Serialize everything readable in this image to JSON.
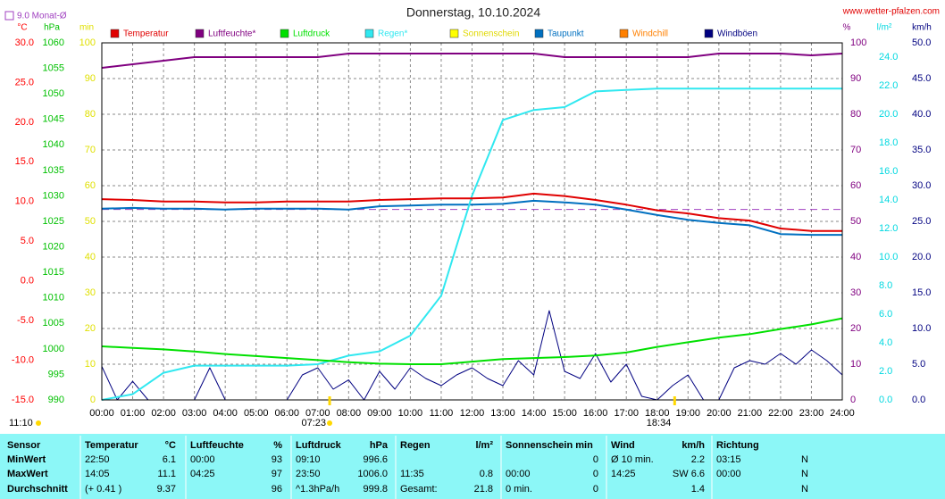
{
  "title": "Donnerstag, 10.10.2024",
  "site": "www.wetter-pfalzen.com",
  "monthly_avg": {
    "label": "9.0 Monat-Ø",
    "value": 9.0,
    "color": "#a040c0"
  },
  "sun": {
    "now": "11:10",
    "sunrise": "07:23",
    "sunset": "18:34"
  },
  "chart_data": {
    "type": "line",
    "x": [
      0,
      1,
      2,
      3,
      4,
      5,
      6,
      7,
      8,
      9,
      10,
      11,
      12,
      13,
      14,
      15,
      16,
      17,
      18,
      19,
      20,
      21,
      22,
      23,
      24
    ],
    "xlim": [
      0,
      24
    ],
    "xticks": [
      {
        "value": 0,
        "label": "00:00"
      },
      {
        "value": 1,
        "label": "01:00"
      },
      {
        "value": 2,
        "label": "02:00"
      },
      {
        "value": 3,
        "label": "03:00"
      },
      {
        "value": 4,
        "label": "04:00"
      },
      {
        "value": 5,
        "label": "05:00"
      },
      {
        "value": 6,
        "label": "06:00"
      },
      {
        "value": 7,
        "label": "07:00"
      },
      {
        "value": 8,
        "label": "08:00"
      },
      {
        "value": 9,
        "label": "09:00"
      },
      {
        "value": 10,
        "label": "10:00"
      },
      {
        "value": 11,
        "label": "11:00"
      },
      {
        "value": 12,
        "label": "12:00"
      },
      {
        "value": 13,
        "label": "13:00"
      },
      {
        "value": 14,
        "label": "14:00"
      },
      {
        "value": 15,
        "label": "15:00"
      },
      {
        "value": 16,
        "label": "16:00"
      },
      {
        "value": 17,
        "label": "17:00"
      },
      {
        "value": 18,
        "label": "18:00"
      },
      {
        "value": 19,
        "label": "19:00"
      },
      {
        "value": 20,
        "label": "20:00"
      },
      {
        "value": 21,
        "label": "21:00"
      },
      {
        "value": 22,
        "label": "22:00"
      },
      {
        "value": 23,
        "label": "23:00"
      },
      {
        "value": 24,
        "label": "24:00"
      }
    ],
    "grid": true,
    "axes": [
      {
        "unit": "°C",
        "color": "#ff0000",
        "lim": [
          -15,
          30
        ],
        "ticks": [
          {
            "value": 30,
            "label": "30.0"
          },
          {
            "value": 25,
            "label": "25.0"
          },
          {
            "value": 20,
            "label": "20.0"
          },
          {
            "value": 15,
            "label": "15.0"
          },
          {
            "value": 10,
            "label": "10.0"
          },
          {
            "value": 5,
            "label": "5.0"
          },
          {
            "value": 0,
            "label": "0.0"
          },
          {
            "value": -5,
            "label": "-5.0"
          },
          {
            "value": -10,
            "label": "-10.0"
          },
          {
            "value": -15,
            "label": "-15.0"
          }
        ]
      },
      {
        "unit": "hPa",
        "color": "#00c000",
        "lim": [
          990,
          1060
        ],
        "ticks": [
          1060,
          1055,
          1050,
          1045,
          1040,
          1035,
          1030,
          1025,
          1020,
          1015,
          1010,
          1005,
          1000,
          995,
          990
        ]
      },
      {
        "unit": "min",
        "color": "#e0e000",
        "lim": [
          0,
          100
        ],
        "ticks": [
          100,
          90,
          80,
          70,
          60,
          50,
          40,
          30,
          20,
          10,
          0
        ]
      },
      {
        "unit": "%",
        "color": "#800080",
        "lim": [
          0,
          100
        ],
        "ticks": [
          100,
          90,
          80,
          70,
          60,
          50,
          40,
          30,
          20,
          10,
          0
        ]
      },
      {
        "unit": "l/m²",
        "color": "#00d8e0",
        "lim": [
          0,
          25
        ],
        "ticks": [
          {
            "value": 24,
            "label": "24.0"
          },
          {
            "value": 22,
            "label": "22.0"
          },
          {
            "value": 20,
            "label": "20.0"
          },
          {
            "value": 18,
            "label": "18.0"
          },
          {
            "value": 16,
            "label": "16.0"
          },
          {
            "value": 14,
            "label": "14.0"
          },
          {
            "value": 12,
            "label": "12.0"
          },
          {
            "value": 10,
            "label": "10.0"
          },
          {
            "value": 8,
            "label": "8.0"
          },
          {
            "value": 6,
            "label": "6.0"
          },
          {
            "value": 4,
            "label": "4.0"
          },
          {
            "value": 2,
            "label": "2.0"
          },
          {
            "value": 0,
            "label": "0.0"
          }
        ]
      },
      {
        "unit": "km/h",
        "color": "#000080",
        "lim": [
          0,
          50
        ],
        "ticks": [
          {
            "value": 50,
            "label": "50.0"
          },
          {
            "value": 45,
            "label": "45.0"
          },
          {
            "value": 40,
            "label": "40.0"
          },
          {
            "value": 35,
            "label": "35.0"
          },
          {
            "value": 30,
            "label": "30.0"
          },
          {
            "value": 25,
            "label": "25.0"
          },
          {
            "value": 20,
            "label": "20.0"
          },
          {
            "value": 15,
            "label": "15.0"
          },
          {
            "value": 10,
            "label": "10.0"
          },
          {
            "value": 5,
            "label": "5.0"
          },
          {
            "value": 0,
            "label": "0.0"
          }
        ]
      }
    ],
    "series": [
      {
        "name": "Temperatur",
        "color": "#e00000",
        "axis": 0,
        "values": [
          10.3,
          10.2,
          10.0,
          10.0,
          9.9,
          9.9,
          10.0,
          10.0,
          10.0,
          10.2,
          10.3,
          10.4,
          10.4,
          10.5,
          11.0,
          10.7,
          10.2,
          9.6,
          8.9,
          8.5,
          7.9,
          7.6,
          6.6,
          6.3,
          6.3
        ]
      },
      {
        "name": "Luftfeuchte*",
        "color": "#800080",
        "axis": 3,
        "values": [
          93,
          94,
          95,
          96,
          96,
          96,
          96,
          96,
          97,
          97,
          97,
          97,
          97,
          97,
          97,
          96,
          96,
          96,
          96,
          96,
          97,
          97,
          97,
          96.5,
          97
        ]
      },
      {
        "name": "Luftdruck",
        "color": "#00e000",
        "axis": 1,
        "values": [
          1000.5,
          1000.2,
          999.9,
          999.5,
          999.0,
          998.6,
          998.2,
          997.8,
          997.4,
          997.1,
          997.0,
          997.0,
          997.5,
          998.0,
          998.2,
          998.4,
          998.7,
          999.3,
          1000.4,
          1001.3,
          1002.2,
          1002.9,
          1003.9,
          1004.8,
          1006.0
        ]
      },
      {
        "name": "Regen*",
        "color": "#30e8f0",
        "axis": 4,
        "values": [
          0,
          0.4,
          1.9,
          2.4,
          2.4,
          2.4,
          2.4,
          2.5,
          3.1,
          3.4,
          4.5,
          7.3,
          14.3,
          19.6,
          20.3,
          20.5,
          21.6,
          21.7,
          21.8,
          21.8,
          21.8,
          21.8,
          21.8,
          21.8,
          21.8
        ]
      },
      {
        "name": "Sonnenschein",
        "color": "#ffff00",
        "axis": 2,
        "values": [
          null,
          null,
          null,
          null,
          null,
          null,
          null,
          null,
          null,
          null,
          null,
          null,
          null,
          null,
          null,
          null,
          null,
          null,
          null,
          null,
          null,
          null,
          null,
          null,
          null
        ]
      },
      {
        "name": "Taupunkt",
        "color": "#0070c0",
        "axis": 0,
        "values": [
          9.1,
          9.2,
          9.1,
          9.1,
          9.0,
          9.1,
          9.1,
          9.1,
          9.0,
          9.4,
          9.5,
          9.6,
          9.6,
          9.7,
          10.1,
          9.9,
          9.6,
          9.0,
          8.3,
          7.7,
          7.3,
          7.0,
          5.9,
          5.8,
          5.8
        ]
      },
      {
        "name": "Windchill",
        "color": "#ff8000",
        "axis": 0,
        "values": [
          null,
          null,
          null,
          null,
          null,
          null,
          null,
          null,
          null,
          null,
          null,
          null,
          null,
          null,
          null,
          null,
          null,
          null,
          null,
          null,
          null,
          null,
          null,
          null,
          null
        ]
      },
      {
        "name": "Windböen",
        "color": "#000080",
        "axis": 5,
        "width": 1,
        "x": [
          0,
          0.5,
          1,
          1.5,
          2,
          2.5,
          3,
          3.5,
          4,
          4.5,
          5,
          5.5,
          6,
          6.5,
          7,
          7.5,
          8,
          8.5,
          9,
          9.5,
          10,
          10.5,
          11,
          11.5,
          12,
          12.5,
          13,
          13.5,
          14,
          14.5,
          15,
          15.5,
          16,
          16.5,
          17,
          17.5,
          18,
          18.5,
          19,
          19.5,
          20,
          20.5,
          21,
          21.5,
          22,
          22.5,
          23,
          23.5,
          24
        ],
        "values": [
          4.7,
          0,
          2.6,
          0,
          0,
          0,
          0,
          4.5,
          0,
          0,
          0,
          0,
          0,
          3.5,
          4.5,
          1.5,
          2.8,
          0,
          4,
          1.5,
          4.5,
          3,
          2,
          3.5,
          4.5,
          3,
          2,
          5.5,
          3.5,
          12.5,
          4,
          3,
          6.5,
          2.5,
          5,
          0.5,
          0,
          2,
          3.5,
          0,
          0,
          4.5,
          5.5,
          5,
          6.5,
          5,
          7,
          5.5,
          3.5
        ]
      }
    ]
  },
  "table": {
    "header": [
      "Sensor",
      [
        "Temperatur",
        "°C"
      ],
      [
        "Luftfeuchte",
        "%"
      ],
      [
        "Luftdruck",
        "hPa"
      ],
      [
        "Regen",
        "l/m²"
      ],
      [
        "Sonnenschein min",
        null
      ],
      [
        "Wind",
        "km/h"
      ],
      [
        "Richtung",
        null
      ]
    ],
    "rows": [
      [
        "MinWert",
        [
          "22:50",
          "6.1"
        ],
        [
          "00:00",
          "93"
        ],
        [
          "09:10",
          "996.6"
        ],
        [
          null,
          null
        ],
        [
          null,
          "0"
        ],
        [
          "Ø 10 min.",
          "2.2"
        ],
        [
          "03:15",
          "N"
        ]
      ],
      [
        "MaxWert",
        [
          "14:05",
          "11.1"
        ],
        [
          "04:25",
          "97"
        ],
        [
          "23:50",
          "1006.0"
        ],
        [
          "11:35",
          "0.8"
        ],
        [
          "00:00",
          "0"
        ],
        [
          "14:25",
          "SW 6.6"
        ],
        [
          "00:00",
          "N"
        ]
      ],
      [
        "Durchschnitt",
        [
          "(+ 0.41 )",
          "9.37"
        ],
        [
          null,
          "96"
        ],
        [
          "^1.3hPa/h",
          "999.8"
        ],
        [
          "Gesamt:",
          "21.8"
        ],
        [
          "0 min.",
          "0"
        ],
        [
          null,
          "1.4"
        ],
        [
          null,
          "N"
        ]
      ]
    ]
  }
}
